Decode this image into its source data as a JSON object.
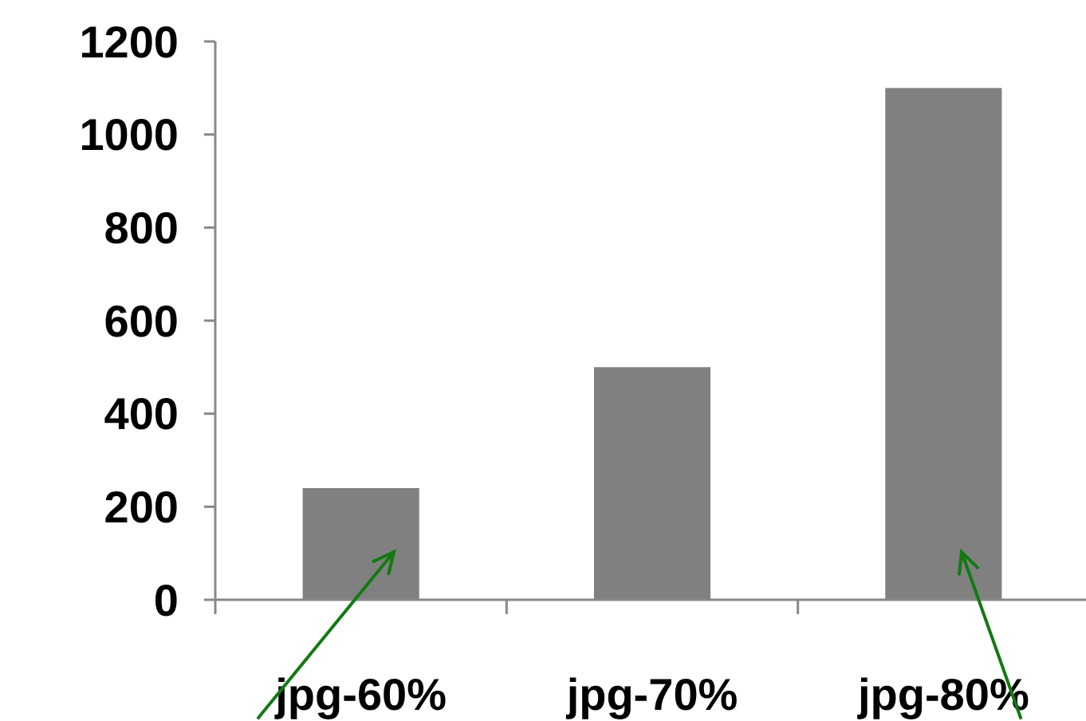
{
  "chart_data": {
    "type": "bar",
    "categories": [
      "jpg-60%",
      "jpg-70%",
      "jpg-80%"
    ],
    "values": [
      240,
      500,
      1100
    ],
    "color": "#808080",
    "ylim": [
      0,
      1200
    ],
    "yticks": [
      0,
      200,
      400,
      600,
      800,
      1000,
      1200
    ],
    "grid": false
  }
}
